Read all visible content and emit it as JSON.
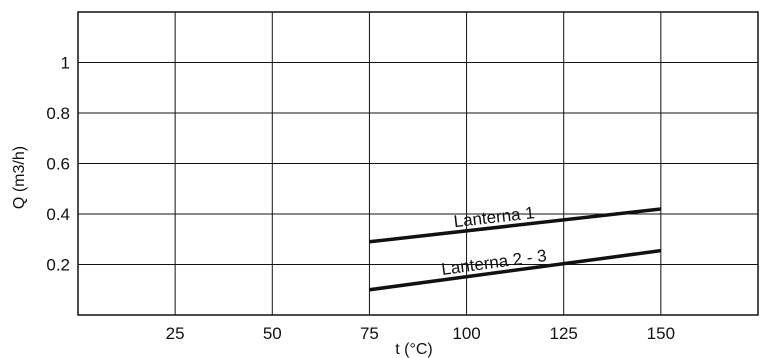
{
  "chart_data": {
    "type": "line",
    "xlabel": "t (°C)",
    "ylabel": "Q (m3/h)",
    "xlim": [
      0,
      175
    ],
    "ylim": [
      0,
      1.2
    ],
    "x_ticks": [
      25,
      50,
      75,
      100,
      125,
      150
    ],
    "x_tick_labels": [
      "25",
      "50",
      "75",
      "100",
      "125",
      "150"
    ],
    "y_ticks": [
      0.2,
      0.4,
      0.6,
      0.8,
      1
    ],
    "y_tick_labels": [
      "0.2",
      "0.4",
      "0.6",
      "0.8",
      "1"
    ],
    "grid": true,
    "legend": "none",
    "series": [
      {
        "name": "Lanterna 1",
        "color": "#111111",
        "points": [
          [
            75,
            0.29
          ],
          [
            150,
            0.42
          ]
        ]
      },
      {
        "name": "Lanterna 2 - 3",
        "color": "#111111",
        "points": [
          [
            75,
            0.1
          ],
          [
            150,
            0.255
          ]
        ]
      }
    ]
  }
}
